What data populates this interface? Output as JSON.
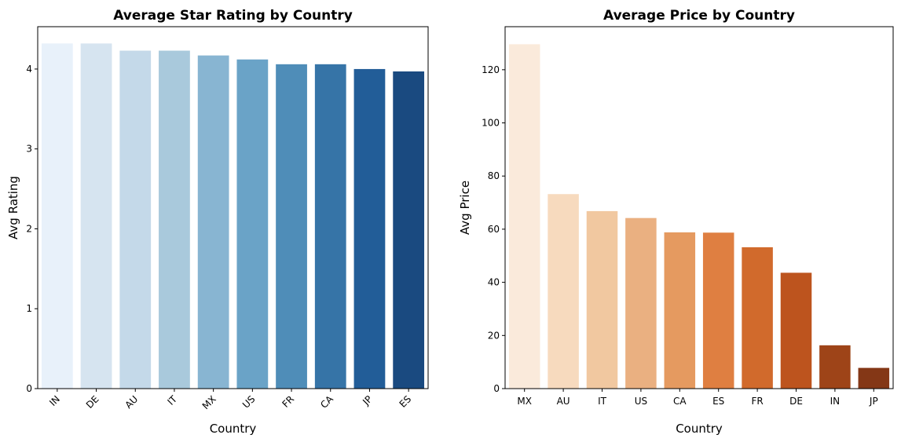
{
  "chart_data": [
    {
      "type": "bar",
      "title": "Average Star Rating by Country",
      "xlabel": "Country",
      "ylabel": "Avg Rating",
      "categories": [
        "IN",
        "DE",
        "AU",
        "IT",
        "MX",
        "US",
        "FR",
        "CA",
        "JP",
        "ES"
      ],
      "values": [
        4.32,
        4.32,
        4.23,
        4.23,
        4.17,
        4.12,
        4.06,
        4.06,
        4.0,
        3.97
      ],
      "yticks": [
        0,
        1,
        2,
        3,
        4
      ],
      "ylim": [
        0,
        4.53
      ],
      "xtick_rotation": 45,
      "grid": false,
      "colors": [
        "#e8f1fa",
        "#d6e4f0",
        "#c4d9e9",
        "#a9c9dc",
        "#88b5d2",
        "#6aa3c7",
        "#4f8db8",
        "#3674a7",
        "#225d98",
        "#1a4a80"
      ]
    },
    {
      "type": "bar",
      "title": "Average Price by Country",
      "xlabel": "Country",
      "ylabel": "Avg Price",
      "categories": [
        "MX",
        "AU",
        "IT",
        "US",
        "CA",
        "ES",
        "FR",
        "DE",
        "IN",
        "JP"
      ],
      "values": [
        129.6,
        73.2,
        66.8,
        64.2,
        58.8,
        58.7,
        53.2,
        43.6,
        16.3,
        7.8
      ],
      "yticks": [
        0,
        20,
        40,
        60,
        80,
        100,
        120
      ],
      "ylim": [
        0,
        136.2
      ],
      "xtick_rotation": 0,
      "grid": false,
      "colors": [
        "#faeadb",
        "#f7dabe",
        "#f1c8a0",
        "#eab081",
        "#e59a60",
        "#df7f41",
        "#d16a2c",
        "#bd541e",
        "#9e4418",
        "#843716"
      ]
    }
  ]
}
